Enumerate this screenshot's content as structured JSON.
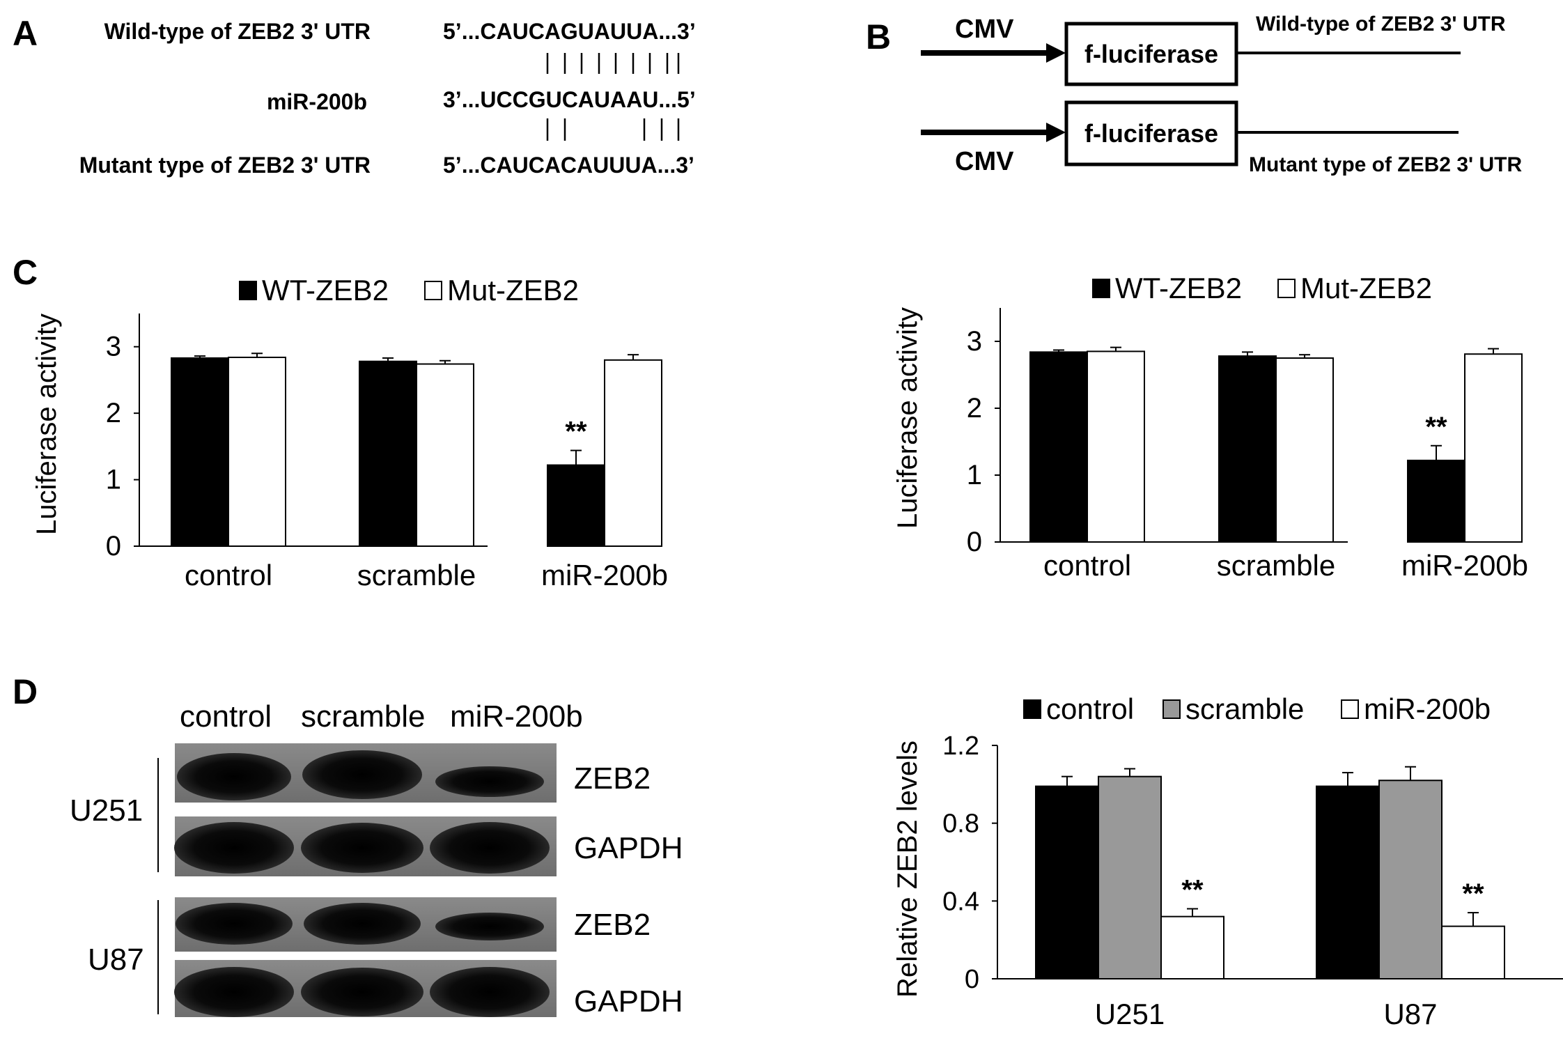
{
  "panels": {
    "a": "A",
    "b": "B",
    "c": "C",
    "d": "D"
  },
  "panel_a": {
    "wt_label": "Wild-type of ZEB2 3' UTR",
    "mir_label": "miR-200b",
    "mut_label": "Mutant type of ZEB2 3' UTR",
    "wt_seq": "5’...CAUCAGUAUUA...3’",
    "mir_seq": "3’...UCCGUCAUAAU...5’",
    "mut_seq": "5’...CAUCACAUUUA...3’"
  },
  "panel_b": {
    "cmv": "CMV",
    "box": "f-luciferase",
    "wt_label": "Wild-type of ZEB2 3' UTR",
    "mut_label": "Mutant type of ZEB2 3' UTR"
  },
  "chart_data": [
    {
      "type": "bar",
      "categories": [
        "control",
        "scramble",
        "miR-200b"
      ],
      "series": [
        {
          "name": "WT-ZEB2",
          "values": [
            2.83,
            2.78,
            1.22
          ],
          "errors": [
            0.03,
            0.05,
            0.22
          ],
          "color": "#000000"
        },
        {
          "name": "Mut-ZEB2",
          "values": [
            2.84,
            2.74,
            2.8
          ],
          "errors": [
            0.06,
            0.05,
            0.08
          ],
          "color": "#ffffff"
        }
      ],
      "ylabel": "Luciferase activity",
      "ylim": [
        0,
        3.5
      ],
      "yticks": [
        "0",
        "1",
        "2",
        "3"
      ],
      "annotations": [
        "**"
      ],
      "legend": "top"
    },
    {
      "type": "bar",
      "categories": [
        "control",
        "scramble",
        "miR-200b"
      ],
      "series": [
        {
          "name": "WT-ZEB2",
          "values": [
            2.84,
            2.78,
            1.22
          ],
          "errors": [
            0.03,
            0.06,
            0.22
          ],
          "color": "#000000"
        },
        {
          "name": "Mut-ZEB2",
          "values": [
            2.85,
            2.75,
            2.81
          ],
          "errors": [
            0.06,
            0.05,
            0.08
          ],
          "color": "#ffffff"
        }
      ],
      "ylabel": "Luciferase activity",
      "ylim": [
        0,
        3.5
      ],
      "yticks": [
        "0",
        "1",
        "2",
        "3"
      ],
      "annotations": [
        "**"
      ],
      "legend": "top"
    },
    {
      "type": "bar",
      "categories": [
        "U251",
        "U87"
      ],
      "series": [
        {
          "name": "control",
          "values": [
            0.99,
            0.99
          ],
          "errors": [
            0.05,
            0.07
          ],
          "color": "#000000"
        },
        {
          "name": "scramble",
          "values": [
            1.04,
            1.02
          ],
          "errors": [
            0.04,
            0.07
          ],
          "color": "#999999"
        },
        {
          "name": "miR-200b",
          "values": [
            0.32,
            0.27
          ],
          "errors": [
            0.04,
            0.07
          ],
          "color": "#ffffff"
        }
      ],
      "ylabel": "Relative ZEB2 levels",
      "ylim": [
        0,
        1.2
      ],
      "yticks": [
        "0",
        "0.4",
        "0.8",
        "1.2"
      ],
      "annotations": [
        "**",
        "**"
      ],
      "legend": "top"
    }
  ],
  "blot": {
    "lanes": [
      "control",
      "scramble",
      "miR-200b"
    ],
    "cell_lines": [
      "U251",
      "U87"
    ],
    "proteins": [
      "ZEB2",
      "GAPDH",
      "ZEB2",
      "GAPDH"
    ]
  }
}
